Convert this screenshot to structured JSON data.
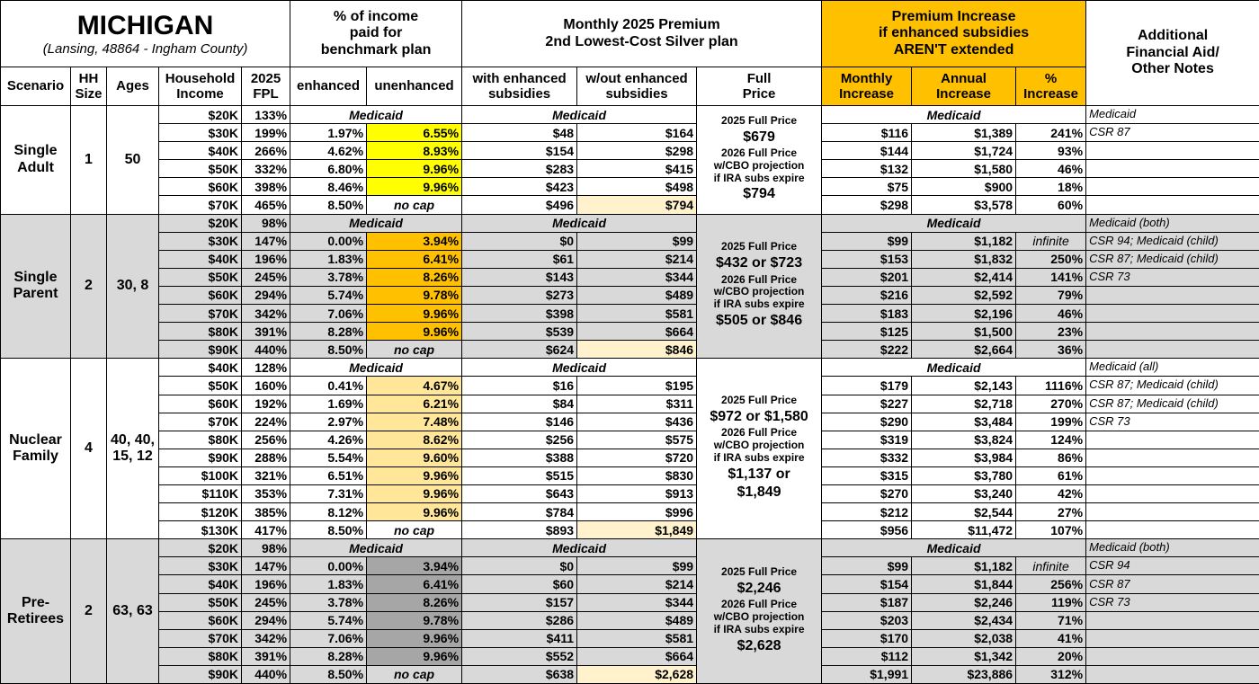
{
  "header": {
    "title": "MICHIGAN",
    "subtitle": "(Lansing, 48864 - Ingham County)",
    "income_group": {
      "lines": [
        "% of income",
        "paid for",
        "benchmark plan"
      ]
    },
    "premium_group": {
      "lines": [
        "Monthly 2025 Premium",
        "2nd Lowest-Cost Silver plan"
      ]
    },
    "increase_group": {
      "lines": [
        "Premium Increase",
        "if enhanced subsidies",
        "AREN'T extended"
      ]
    },
    "notes": {
      "lines": [
        "Additional",
        "Financial Aid/",
        "Other Notes"
      ]
    },
    "columns": [
      {
        "lines": [
          "Scenario"
        ]
      },
      {
        "lines": [
          "HH",
          "Size"
        ]
      },
      {
        "lines": [
          "Ages"
        ]
      },
      {
        "lines": [
          "Household",
          "Income"
        ]
      },
      {
        "lines": [
          "2025",
          "FPL"
        ]
      },
      {
        "lines": [
          "enhanced"
        ]
      },
      {
        "lines": [
          "unenhanced"
        ]
      },
      {
        "lines": [
          "with enhanced",
          "subsidies"
        ]
      },
      {
        "lines": [
          "w/out enhanced",
          "subsidies"
        ]
      },
      {
        "lines": [
          "Full",
          "Price"
        ]
      },
      {
        "lines": [
          "Monthly",
          "Increase"
        ]
      },
      {
        "lines": [
          "Annual",
          "Increase"
        ]
      },
      {
        "lines": [
          "%",
          "Increase"
        ]
      }
    ]
  },
  "scenarios": [
    {
      "name": "Single Adult",
      "hh_size": "1",
      "ages": "50",
      "highlight": "#ffff00",
      "full_price": [
        "2025 Full Price",
        "$679",
        "2026 Full Price",
        "w/CBO projection",
        "if IRA subs expire",
        "$794"
      ],
      "rows": [
        {
          "income": "$20K",
          "fpl": "133%",
          "medicaid_income": "Medicaid",
          "medicaid_premium": "Medicaid",
          "medicaid_increase": "Medicaid",
          "note": "Medicaid"
        },
        {
          "income": "$30K",
          "fpl": "199%",
          "enhanced": "1.97%",
          "unenhanced": "6.55%",
          "with": "$48",
          "without": "$164",
          "monthly": "$116",
          "annual": "$1,389",
          "pct": "241%",
          "note": "CSR 87"
        },
        {
          "income": "$40K",
          "fpl": "266%",
          "enhanced": "4.62%",
          "unenhanced": "8.93%",
          "with": "$154",
          "without": "$298",
          "monthly": "$144",
          "annual": "$1,724",
          "pct": "93%"
        },
        {
          "income": "$50K",
          "fpl": "332%",
          "enhanced": "6.80%",
          "unenhanced": "9.96%",
          "with": "$283",
          "without": "$415",
          "monthly": "$132",
          "annual": "$1,580",
          "pct": "46%"
        },
        {
          "income": "$60K",
          "fpl": "398%",
          "enhanced": "8.46%",
          "unenhanced": "9.96%",
          "with": "$423",
          "without": "$498",
          "monthly": "$75",
          "annual": "$900",
          "pct": "18%"
        },
        {
          "income": "$70K",
          "fpl": "465%",
          "enhanced": "8.50%",
          "unenhanced": "no cap",
          "with": "$496",
          "without": "$794",
          "monthly": "$298",
          "annual": "$3,578",
          "pct": "60%"
        }
      ]
    },
    {
      "name": "Single Parent",
      "hh_size": "2",
      "ages": "30, 8",
      "highlight": "#ffc000",
      "full_price": [
        "2025 Full Price",
        "$432 or $723",
        "2026 Full Price",
        "w/CBO projection",
        "if IRA subs expire",
        "$505 or $846"
      ],
      "rows": [
        {
          "income": "$20K",
          "fpl": "98%",
          "medicaid_income": "Medicaid",
          "medicaid_premium": "Medicaid",
          "medicaid_increase": "Medicaid",
          "note": "Medicaid (both)"
        },
        {
          "income": "$30K",
          "fpl": "147%",
          "enhanced": "0.00%",
          "unenhanced": "3.94%",
          "with": "$0",
          "without": "$99",
          "monthly": "$99",
          "annual": "$1,182",
          "pct": "infinite",
          "note": "CSR 94; Medicaid (child)"
        },
        {
          "income": "$40K",
          "fpl": "196%",
          "enhanced": "1.83%",
          "unenhanced": "6.41%",
          "with": "$61",
          "without": "$214",
          "monthly": "$153",
          "annual": "$1,832",
          "pct": "250%",
          "note": "CSR 87; Medicaid (child)"
        },
        {
          "income": "$50K",
          "fpl": "245%",
          "enhanced": "3.78%",
          "unenhanced": "8.26%",
          "with": "$143",
          "without": "$344",
          "monthly": "$201",
          "annual": "$2,414",
          "pct": "141%",
          "note": "CSR 73"
        },
        {
          "income": "$60K",
          "fpl": "294%",
          "enhanced": "5.74%",
          "unenhanced": "9.78%",
          "with": "$273",
          "without": "$489",
          "monthly": "$216",
          "annual": "$2,592",
          "pct": "79%"
        },
        {
          "income": "$70K",
          "fpl": "342%",
          "enhanced": "7.06%",
          "unenhanced": "9.96%",
          "with": "$398",
          "without": "$581",
          "monthly": "$183",
          "annual": "$2,196",
          "pct": "46%"
        },
        {
          "income": "$80K",
          "fpl": "391%",
          "enhanced": "8.28%",
          "unenhanced": "9.96%",
          "with": "$539",
          "without": "$664",
          "monthly": "$125",
          "annual": "$1,500",
          "pct": "23%"
        },
        {
          "income": "$90K",
          "fpl": "440%",
          "enhanced": "8.50%",
          "unenhanced": "no cap",
          "with": "$624",
          "without": "$846",
          "monthly": "$222",
          "annual": "$2,664",
          "pct": "36%"
        }
      ]
    },
    {
      "name": "Nuclear Family",
      "hh_size": "4",
      "ages": "40, 40, 15, 12",
      "highlight": "#ffe699",
      "full_price": [
        "2025 Full Price",
        "$972 or $1,580",
        "2026 Full Price",
        "w/CBO projection",
        "if IRA subs expire",
        "$1,137 or",
        "$1,849"
      ],
      "rows": [
        {
          "income": "$40K",
          "fpl": "128%",
          "medicaid_income": "Medicaid",
          "medicaid_premium": "Medicaid",
          "medicaid_increase": "Medicaid",
          "note": "Medicaid (all)"
        },
        {
          "income": "$50K",
          "fpl": "160%",
          "enhanced": "0.41%",
          "unenhanced": "4.67%",
          "with": "$16",
          "without": "$195",
          "monthly": "$179",
          "annual": "$2,143",
          "pct": "1116%",
          "note": "CSR 87; Medicaid (child)"
        },
        {
          "income": "$60K",
          "fpl": "192%",
          "enhanced": "1.69%",
          "unenhanced": "6.21%",
          "with": "$84",
          "without": "$311",
          "monthly": "$227",
          "annual": "$2,718",
          "pct": "270%",
          "note": "CSR 87; Medicaid (child)"
        },
        {
          "income": "$70K",
          "fpl": "224%",
          "enhanced": "2.97%",
          "unenhanced": "7.48%",
          "with": "$146",
          "without": "$436",
          "monthly": "$290",
          "annual": "$3,484",
          "pct": "199%",
          "note": "CSR 73"
        },
        {
          "income": "$80K",
          "fpl": "256%",
          "enhanced": "4.26%",
          "unenhanced": "8.62%",
          "with": "$256",
          "without": "$575",
          "monthly": "$319",
          "annual": "$3,824",
          "pct": "124%"
        },
        {
          "income": "$90K",
          "fpl": "288%",
          "enhanced": "5.54%",
          "unenhanced": "9.60%",
          "with": "$388",
          "without": "$720",
          "monthly": "$332",
          "annual": "$3,984",
          "pct": "86%"
        },
        {
          "income": "$100K",
          "fpl": "321%",
          "enhanced": "6.51%",
          "unenhanced": "9.96%",
          "with": "$515",
          "without": "$830",
          "monthly": "$315",
          "annual": "$3,780",
          "pct": "61%"
        },
        {
          "income": "$110K",
          "fpl": "353%",
          "enhanced": "7.31%",
          "unenhanced": "9.96%",
          "with": "$643",
          "without": "$913",
          "monthly": "$270",
          "annual": "$3,240",
          "pct": "42%"
        },
        {
          "income": "$120K",
          "fpl": "385%",
          "enhanced": "8.12%",
          "unenhanced": "9.96%",
          "with": "$784",
          "without": "$996",
          "monthly": "$212",
          "annual": "$2,544",
          "pct": "27%"
        },
        {
          "income": "$130K",
          "fpl": "417%",
          "enhanced": "8.50%",
          "unenhanced": "no cap",
          "with": "$893",
          "without": "$1,849",
          "monthly": "$956",
          "annual": "$11,472",
          "pct": "107%"
        }
      ]
    },
    {
      "name": "Pre-Retirees",
      "hh_size": "2",
      "ages": "63, 63",
      "highlight": "#a6a6a6",
      "full_price": [
        "2025 Full Price",
        "$2,246",
        "2026 Full Price",
        "w/CBO projection",
        "if IRA subs expire",
        "$2,628"
      ],
      "rows": [
        {
          "income": "$20K",
          "fpl": "98%",
          "medicaid_income": "Medicaid",
          "medicaid_premium": "Medicaid",
          "medicaid_increase": "Medicaid",
          "note": "Medicaid (both)"
        },
        {
          "income": "$30K",
          "fpl": "147%",
          "enhanced": "0.00%",
          "unenhanced": "3.94%",
          "with": "$0",
          "without": "$99",
          "monthly": "$99",
          "annual": "$1,182",
          "pct": "infinite",
          "note": "CSR 94"
        },
        {
          "income": "$40K",
          "fpl": "196%",
          "enhanced": "1.83%",
          "unenhanced": "6.41%",
          "with": "$60",
          "without": "$214",
          "monthly": "$154",
          "annual": "$1,844",
          "pct": "256%",
          "note": "CSR 87"
        },
        {
          "income": "$50K",
          "fpl": "245%",
          "enhanced": "3.78%",
          "unenhanced": "8.26%",
          "with": "$157",
          "without": "$344",
          "monthly": "$187",
          "annual": "$2,246",
          "pct": "119%",
          "note": "CSR 73"
        },
        {
          "income": "$60K",
          "fpl": "294%",
          "enhanced": "5.74%",
          "unenhanced": "9.78%",
          "with": "$286",
          "without": "$489",
          "monthly": "$203",
          "annual": "$2,434",
          "pct": "71%"
        },
        {
          "income": "$70K",
          "fpl": "342%",
          "enhanced": "7.06%",
          "unenhanced": "9.96%",
          "with": "$411",
          "without": "$581",
          "monthly": "$170",
          "annual": "$2,038",
          "pct": "41%"
        },
        {
          "income": "$80K",
          "fpl": "391%",
          "enhanced": "8.28%",
          "unenhanced": "9.96%",
          "with": "$552",
          "without": "$664",
          "monthly": "$112",
          "annual": "$1,342",
          "pct": "20%"
        },
        {
          "income": "$90K",
          "fpl": "440%",
          "enhanced": "8.50%",
          "unenhanced": "no cap",
          "with": "$638",
          "without": "$2,628",
          "monthly": "$1,991",
          "annual": "$23,886",
          "pct": "312%"
        }
      ]
    }
  ]
}
